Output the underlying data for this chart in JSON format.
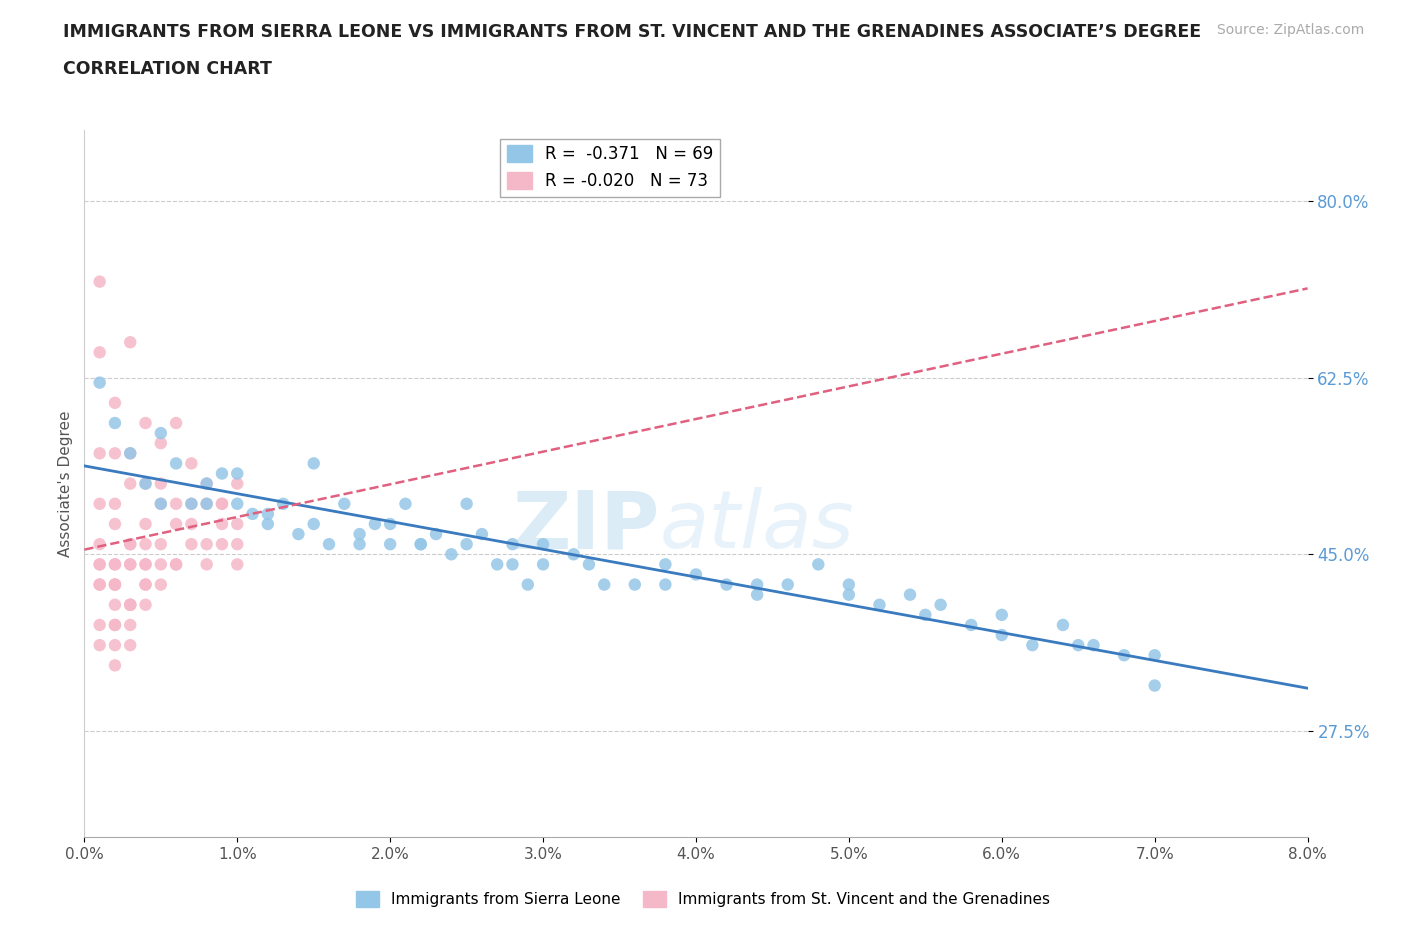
{
  "title_line1": "IMMIGRANTS FROM SIERRA LEONE VS IMMIGRANTS FROM ST. VINCENT AND THE GRENADINES ASSOCIATE’S DEGREE",
  "title_line2": "CORRELATION CHART",
  "source_text": "Source: ZipAtlas.com",
  "ylabel": "Associate's Degree",
  "xlim": [
    0.0,
    0.08
  ],
  "ylim": [
    0.17,
    0.87
  ],
  "yticks": [
    0.275,
    0.45,
    0.625,
    0.8
  ],
  "ytick_labels": [
    "27.5%",
    "45.0%",
    "62.5%",
    "80.0%"
  ],
  "xticks": [
    0.0,
    0.01,
    0.02,
    0.03,
    0.04,
    0.05,
    0.06,
    0.07,
    0.08
  ],
  "xtick_labels": [
    "0.0%",
    "1.0%",
    "2.0%",
    "3.0%",
    "4.0%",
    "5.0%",
    "6.0%",
    "7.0%",
    "8.0%"
  ],
  "blue_color": "#94c6e7",
  "pink_color": "#f5b8c8",
  "blue_line_color": "#3a7abf",
  "pink_line_color": "#e06080",
  "legend_r1": "R =  -0.371",
  "legend_n1": "N = 69",
  "legend_r2": "R = -0.020",
  "legend_n2": "N = 73",
  "label1": "Immigrants from Sierra Leone",
  "label2": "Immigrants from St. Vincent and the Grenadines",
  "watermark_zip": "ZIP",
  "watermark_atlas": "atlas",
  "sierra_leone_x": [
    0.001,
    0.002,
    0.003,
    0.004,
    0.005,
    0.006,
    0.007,
    0.008,
    0.009,
    0.01,
    0.011,
    0.012,
    0.013,
    0.014,
    0.015,
    0.016,
    0.017,
    0.018,
    0.019,
    0.02,
    0.021,
    0.022,
    0.023,
    0.024,
    0.025,
    0.026,
    0.027,
    0.028,
    0.029,
    0.03,
    0.032,
    0.034,
    0.036,
    0.038,
    0.04,
    0.042,
    0.044,
    0.046,
    0.048,
    0.05,
    0.052,
    0.054,
    0.056,
    0.058,
    0.06,
    0.062,
    0.064,
    0.066,
    0.068,
    0.07,
    0.005,
    0.01,
    0.015,
    0.02,
    0.025,
    0.03,
    0.008,
    0.012,
    0.018,
    0.022,
    0.028,
    0.033,
    0.038,
    0.044,
    0.05,
    0.055,
    0.06,
    0.065,
    0.07
  ],
  "sierra_leone_y": [
    0.62,
    0.58,
    0.55,
    0.52,
    0.5,
    0.54,
    0.5,
    0.5,
    0.53,
    0.5,
    0.49,
    0.48,
    0.5,
    0.47,
    0.48,
    0.46,
    0.5,
    0.46,
    0.48,
    0.46,
    0.5,
    0.46,
    0.47,
    0.45,
    0.46,
    0.47,
    0.44,
    0.46,
    0.42,
    0.44,
    0.45,
    0.42,
    0.42,
    0.44,
    0.43,
    0.42,
    0.41,
    0.42,
    0.44,
    0.42,
    0.4,
    0.41,
    0.4,
    0.38,
    0.39,
    0.36,
    0.38,
    0.36,
    0.35,
    0.35,
    0.57,
    0.53,
    0.54,
    0.48,
    0.5,
    0.46,
    0.52,
    0.49,
    0.47,
    0.46,
    0.44,
    0.44,
    0.42,
    0.42,
    0.41,
    0.39,
    0.37,
    0.36,
    0.32
  ],
  "st_vincent_x": [
    0.001,
    0.002,
    0.003,
    0.004,
    0.005,
    0.006,
    0.007,
    0.008,
    0.009,
    0.01,
    0.001,
    0.002,
    0.003,
    0.004,
    0.005,
    0.006,
    0.007,
    0.008,
    0.009,
    0.01,
    0.001,
    0.002,
    0.003,
    0.004,
    0.005,
    0.006,
    0.007,
    0.008,
    0.009,
    0.01,
    0.001,
    0.002,
    0.003,
    0.004,
    0.005,
    0.006,
    0.007,
    0.008,
    0.009,
    0.01,
    0.001,
    0.002,
    0.003,
    0.004,
    0.005,
    0.006,
    0.001,
    0.002,
    0.003,
    0.004,
    0.001,
    0.002,
    0.003,
    0.004,
    0.005,
    0.001,
    0.002,
    0.003,
    0.004,
    0.002,
    0.003,
    0.004,
    0.001,
    0.002,
    0.003,
    0.002,
    0.003,
    0.002,
    0.001,
    0.002,
    0.003,
    0.002,
    0.001
  ],
  "st_vincent_y": [
    0.72,
    0.6,
    0.66,
    0.58,
    0.56,
    0.58,
    0.54,
    0.52,
    0.5,
    0.52,
    0.65,
    0.55,
    0.55,
    0.52,
    0.52,
    0.5,
    0.5,
    0.5,
    0.5,
    0.48,
    0.55,
    0.5,
    0.52,
    0.48,
    0.5,
    0.48,
    0.48,
    0.46,
    0.48,
    0.46,
    0.5,
    0.48,
    0.46,
    0.46,
    0.46,
    0.44,
    0.46,
    0.44,
    0.46,
    0.44,
    0.46,
    0.44,
    0.46,
    0.44,
    0.44,
    0.44,
    0.44,
    0.44,
    0.44,
    0.44,
    0.44,
    0.42,
    0.44,
    0.42,
    0.42,
    0.42,
    0.42,
    0.4,
    0.42,
    0.42,
    0.4,
    0.4,
    0.38,
    0.38,
    0.38,
    0.36,
    0.36,
    0.34,
    0.42,
    0.4,
    0.4,
    0.38,
    0.36
  ]
}
